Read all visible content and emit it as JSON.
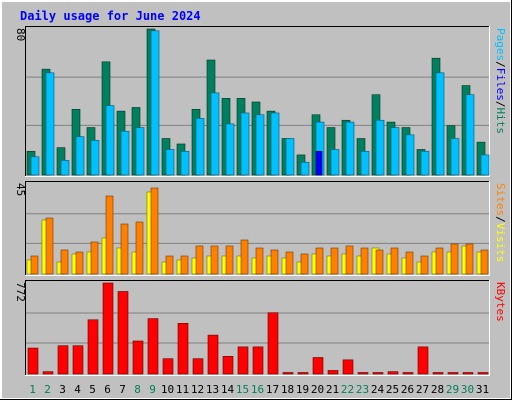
{
  "chart_data": {
    "title": "Daily usage for June 2024",
    "type": "bar",
    "days": [
      "1",
      "2",
      "3",
      "4",
      "5",
      "6",
      "7",
      "8",
      "9",
      "10",
      "11",
      "12",
      "13",
      "14",
      "15",
      "16",
      "17",
      "18",
      "19",
      "20",
      "21",
      "22",
      "23",
      "24",
      "25",
      "26",
      "27",
      "28",
      "29",
      "30",
      "31"
    ],
    "weekend_days": [
      "1",
      "2",
      "8",
      "9",
      "15",
      "16",
      "22",
      "23",
      "29",
      "30"
    ],
    "colors": {
      "hits": "#00805c",
      "files": "#00c0ff",
      "pages": "#00c0ff",
      "visits": "#ffff00",
      "sites": "#ff8000",
      "kbytes": "#ff0000",
      "title": "#0000ff",
      "weekday_label": "#000000",
      "weekend_label": "#00805c",
      "panel_bg": "#c0c0c0"
    },
    "panels": [
      {
        "id": "top",
        "max_label": "80",
        "ylim": [
          0,
          80
        ],
        "legend": [
          {
            "text": "Hits",
            "color": "#00805c"
          },
          {
            "text": "/",
            "color": "#000000"
          },
          {
            "text": "Files",
            "color": "#0000ff"
          },
          {
            "text": "/",
            "color": "#000000"
          },
          {
            "text": "Pages",
            "color": "#00c0ff"
          }
        ],
        "series": [
          {
            "name": "Hits",
            "values": [
              13,
              58,
              15,
              36,
              26,
              62,
              35,
              37,
              80,
              20,
              17,
              36,
              63,
              42,
              42,
              40,
              35,
              20,
              11,
              33,
              26,
              30,
              20,
              44,
              29,
              26,
              14,
              64,
              27,
              49,
              18
            ]
          },
          {
            "name": "Files",
            "values": [
              10,
              56,
              8,
              21,
              19,
              38,
              24,
              26,
              79,
              14,
              13,
              31,
              45,
              28,
              34,
              33,
              34,
              20,
              7,
              29,
              14,
              29,
              13,
              30,
              26,
              22,
              13,
              56,
              20,
              44,
              11
            ]
          },
          {
            "name": "Pages",
            "values": [
              0,
              0,
              0,
              0,
              0,
              0,
              0,
              0,
              0,
              0,
              0,
              0,
              0,
              0,
              0,
              0,
              0,
              0,
              0,
              13,
              0,
              0,
              0,
              0,
              0,
              0,
              0,
              0,
              0,
              0,
              0
            ]
          }
        ]
      },
      {
        "id": "middle",
        "max_label": "45",
        "ylim": [
          0,
          45
        ],
        "legend": [
          {
            "text": "Visits",
            "color": "#ffff00"
          },
          {
            "text": "/",
            "color": "#000000"
          },
          {
            "text": "Sites",
            "color": "#ff8000"
          }
        ],
        "series": [
          {
            "name": "Visits",
            "values": [
              7,
              27,
              6,
              10,
              11,
              18,
              13,
              11,
              41,
              6,
              7,
              8,
              9,
              9,
              9,
              8,
              9,
              8,
              6,
              10,
              9,
              10,
              9,
              13,
              10,
              8,
              6,
              11,
              11,
              14,
              11
            ]
          },
          {
            "name": "Sites",
            "values": [
              9,
              28,
              12,
              11,
              16,
              39,
              25,
              26,
              43,
              9,
              9,
              14,
              14,
              14,
              17,
              13,
              12,
              11,
              10,
              13,
              13,
              14,
              13,
              12,
              13,
              11,
              9,
              13,
              15,
              15,
              12
            ]
          }
        ]
      },
      {
        "id": "bottom",
        "max_label": "772",
        "ylim": [
          0,
          772
        ],
        "legend": [
          {
            "text": "KBytes",
            "color": "#ff0000"
          }
        ],
        "series": [
          {
            "name": "KBytes",
            "values": [
              220,
              20,
              240,
              240,
              460,
              772,
              700,
              280,
              470,
              130,
              430,
              130,
              330,
              150,
              230,
              230,
              520,
              0,
              0,
              140,
              30,
              120,
              0,
              0,
              20,
              0,
              230,
              0,
              0,
              0,
              0
            ]
          }
        ]
      }
    ]
  }
}
